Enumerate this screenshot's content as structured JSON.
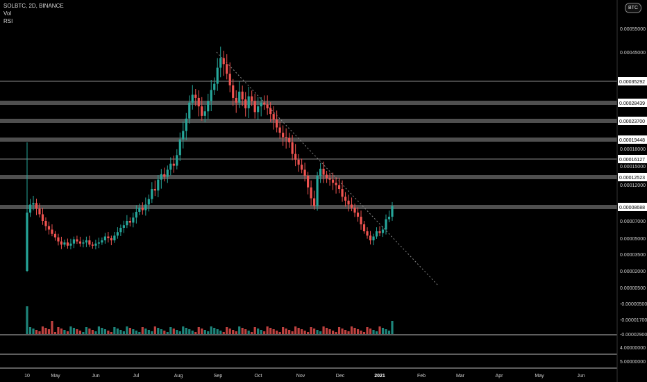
{
  "header": {
    "symbol_line": "SOLBTC, 2D, BINANCE",
    "vol_label": "Vol",
    "rsi_label": "RSI",
    "currency_badge": "BTC"
  },
  "colors": {
    "background": "#000000",
    "up": "#26a69a",
    "down": "#ef5350",
    "level_line": "#8c8c8c",
    "trendline": "#888888"
  },
  "chart_data": {
    "type": "candlestick",
    "symbol": "SOLBTC",
    "interval": "2D",
    "exchange": "BINANCE",
    "x_axis": {
      "labels": [
        "10",
        "May",
        "Jun",
        "Jul",
        "Aug",
        "Sep",
        "Oct",
        "Nov",
        "Dec",
        "2021",
        "Feb",
        "Mar",
        "Apr",
        "May",
        "Jun"
      ]
    },
    "price_axis": {
      "ticks": [
        "0.00055000",
        "0.00045000",
        "0.00018000",
        "0.00015000",
        "0.00012000",
        "0.00007000",
        "0.00005000",
        "0.00003500",
        "0.00002000",
        "0.00000500",
        "-0.00000500",
        "-0.00001700",
        "-0.00002900"
      ],
      "labels": [
        {
          "key": "a",
          "value": "0.00035292"
        },
        {
          "key": "b",
          "value": "0.00028439"
        },
        {
          "key": "c",
          "value": "0.00023700"
        },
        {
          "key": "d",
          "value": "0.00019448"
        },
        {
          "key": "e",
          "value": "0.00016127"
        },
        {
          "key": "f",
          "value": "0.00012523"
        },
        {
          "key": "g",
          "value": "0.00008688"
        }
      ]
    },
    "rsi_axis": {
      "ticks": [
        "4.00000000",
        "5.00000000"
      ]
    },
    "horizontal_levels": [
      {
        "key": "a",
        "value": 0.00035292,
        "band": false
      },
      {
        "key": "b",
        "value": 0.00028439,
        "band": true
      },
      {
        "key": "c",
        "value": 0.000237,
        "band": true
      },
      {
        "key": "d",
        "value": 0.00019448,
        "band": true
      },
      {
        "key": "e",
        "value": 0.00016127,
        "band": false
      },
      {
        "key": "f",
        "value": 0.00012523,
        "band": true
      },
      {
        "key": "g",
        "value": 8.688e-05,
        "band": true
      }
    ],
    "trendline": {
      "from": [
        "Sep",
        0.00045
      ],
      "to": [
        "Feb",
        0.0
      ]
    },
    "candle_closes_approx": [
      8e-05,
      9e-05,
      9.2e-05,
      8.5e-05,
      7.8e-05,
      7e-05,
      6.4e-05,
      6e-05,
      5.5e-05,
      5.1e-05,
      4.7e-05,
      4.4e-05,
      4.6e-05,
      4.3e-05,
      4.5e-05,
      4.9e-05,
      4.7e-05,
      4.5e-05,
      4.6e-05,
      4.8e-05,
      4.4e-05,
      4.3e-05,
      4.5e-05,
      4.6e-05,
      4.8e-05,
      5.2e-05,
      5e-05,
      4.8e-05,
      5.3e-05,
      5.7e-05,
      6.2e-05,
      6.5e-05,
      7e-05,
      6.8e-05,
      7.4e-05,
      8.1e-05,
      8.6e-05,
      8.3e-05,
      9e-05,
      9.7e-05,
      0.00011,
      0.000108,
      0.000122,
      0.000131,
      0.000126,
      0.00014,
      0.000152,
      0.000148,
      0.000168,
      0.000195,
      0.000214,
      0.000243,
      0.000285,
      0.00031,
      0.0003,
      0.000275,
      0.00025,
      0.000262,
      0.00029,
      0.000325,
      0.000345,
      0.000398,
      0.00043,
      0.00041,
      0.000378,
      0.00034,
      0.0003,
      0.000285,
      0.00032,
      0.000295,
      0.00027,
      0.000305,
      0.00029,
      0.00026,
      0.000275,
      0.000285,
      0.00028,
      0.00027,
      0.000255,
      0.00024,
      0.000222,
      0.00021,
      0.0002,
      0.000198,
      0.00019,
      0.00017,
      0.00016,
      0.00015,
      0.00014,
      0.000128,
      0.000112,
      9.8e-05,
      8.8e-05,
      0.000128,
      0.000142,
      0.00013,
      0.000124,
      0.000122,
      0.000118,
      0.000115,
      0.00011,
      0.0001,
      9.5e-05,
      9e-05,
      8.6e-05,
      8e-05,
      7.5e-05,
      6.6e-05,
      5.8e-05,
      5.3e-05,
      4.8e-05,
      5.2e-05,
      5.8e-05,
      5.6e-05,
      6e-05,
      7.2e-05,
      7.5e-05,
      8.8e-05
    ]
  }
}
